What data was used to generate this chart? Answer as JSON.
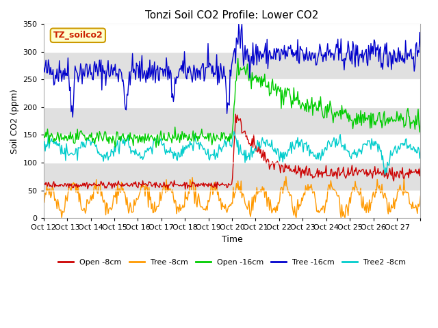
{
  "title": "Tonzi Soil CO2 Profile: Lower CO2",
  "xlabel": "Time",
  "ylabel": "Soil CO2 (ppm)",
  "ylim": [
    0,
    350
  ],
  "background_color": "#ffffff",
  "plot_bg_color": "#ffffff",
  "band_color": "#e0e0e0",
  "legend_box_label": "TZ_soilco2",
  "legend_box_bg": "#ffffcc",
  "legend_box_edge": "#cc2200",
  "series": {
    "open8": {
      "label": "Open -8cm",
      "color": "#cc0000"
    },
    "tree8": {
      "label": "Tree -8cm",
      "color": "#ff9900"
    },
    "open16": {
      "label": "Open -16cm",
      "color": "#00cc00"
    },
    "tree16": {
      "label": "Tree -16cm",
      "color": "#0000cc"
    },
    "tree28": {
      "label": "Tree2 -8cm",
      "color": "#00cccc"
    }
  },
  "yticks": [
    0,
    50,
    100,
    150,
    200,
    250,
    300,
    350
  ],
  "xtick_labels": [
    "Oct 12",
    "Oct 13",
    "Oct 14",
    "Oct 15",
    "Oct 16",
    "Oct 17",
    "Oct 18",
    "Oct 19",
    "Oct 20",
    "Oct 21",
    "Oct 22",
    "Oct 23",
    "Oct 24",
    "Oct 25",
    "Oct 26",
    "Oct 27"
  ],
  "seed": 42
}
